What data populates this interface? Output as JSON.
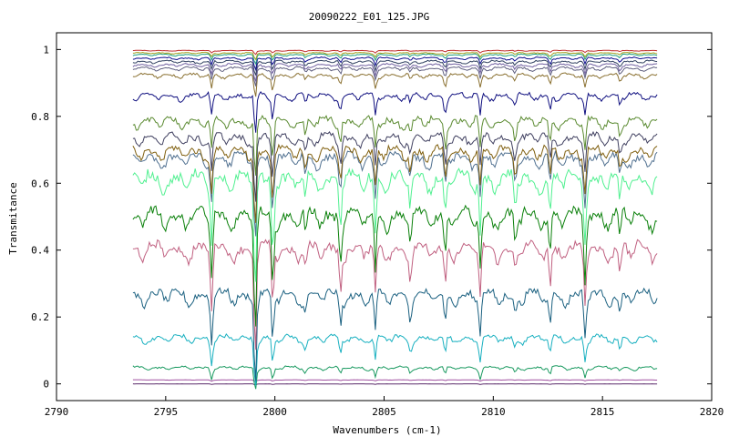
{
  "chart_data": {
    "type": "line",
    "title": "20090222_E01_125.JPG",
    "xlabel": "Wavenumbers (cm-1)",
    "ylabel": "Transmitance",
    "xlim": [
      2790,
      2820
    ],
    "ylim": [
      -0.05,
      1.05
    ],
    "x_ticks": [
      "2790",
      "2795",
      "2800",
      "2805",
      "2810",
      "2815",
      "2820"
    ],
    "y_ticks": [
      "0",
      "0.2",
      "0.4",
      "0.6",
      "0.8",
      "1"
    ],
    "x_range_data": [
      2793.5,
      2817.5
    ],
    "grid": false,
    "legend": "none",
    "absorption_lines_cm1": [
      2797.1,
      2799.1,
      2799.9,
      2801.4,
      2803.0,
      2804.6,
      2806.2,
      2807.8,
      2809.4,
      2811.0,
      2812.6,
      2814.2,
      2815.8
    ],
    "series": [
      {
        "color": "#5a2a6a",
        "baseline": 0.0,
        "depth": 0.002
      },
      {
        "color": "#a050a0",
        "baseline": 0.012,
        "depth": 0.004
      },
      {
        "color": "#1a9a60",
        "baseline": 0.05,
        "depth": 0.04
      },
      {
        "color": "#18b0c0",
        "baseline": 0.14,
        "depth": 0.09
      },
      {
        "color": "#1a6080",
        "baseline": 0.27,
        "depth": 0.16
      },
      {
        "color": "#c06080",
        "baseline": 0.41,
        "depth": 0.2
      },
      {
        "color": "#0a800a",
        "baseline": 0.51,
        "depth": 0.22
      },
      {
        "color": "#50f090",
        "baseline": 0.62,
        "depth": 0.22
      },
      {
        "color": "#507090",
        "baseline": 0.68,
        "depth": 0.16
      },
      {
        "color": "#806010",
        "baseline": 0.7,
        "depth": 0.15
      },
      {
        "color": "#404060",
        "baseline": 0.74,
        "depth": 0.13
      },
      {
        "color": "#5a8a30",
        "baseline": 0.79,
        "depth": 0.12
      },
      {
        "color": "#101080",
        "baseline": 0.865,
        "depth": 0.08
      },
      {
        "color": "#8a7030",
        "baseline": 0.925,
        "depth": 0.05
      },
      {
        "color": "#606080",
        "baseline": 0.945,
        "depth": 0.04
      },
      {
        "color": "#7060a0",
        "baseline": 0.955,
        "depth": 0.035
      },
      {
        "color": "#304060",
        "baseline": 0.965,
        "depth": 0.03
      },
      {
        "color": "#101090",
        "baseline": 0.975,
        "depth": 0.025
      },
      {
        "color": "#20a080",
        "baseline": 0.985,
        "depth": 0.02
      },
      {
        "color": "#a0a020",
        "baseline": 0.99,
        "depth": 0.015
      },
      {
        "color": "#c03030",
        "baseline": 0.997,
        "depth": 0.008
      }
    ]
  }
}
